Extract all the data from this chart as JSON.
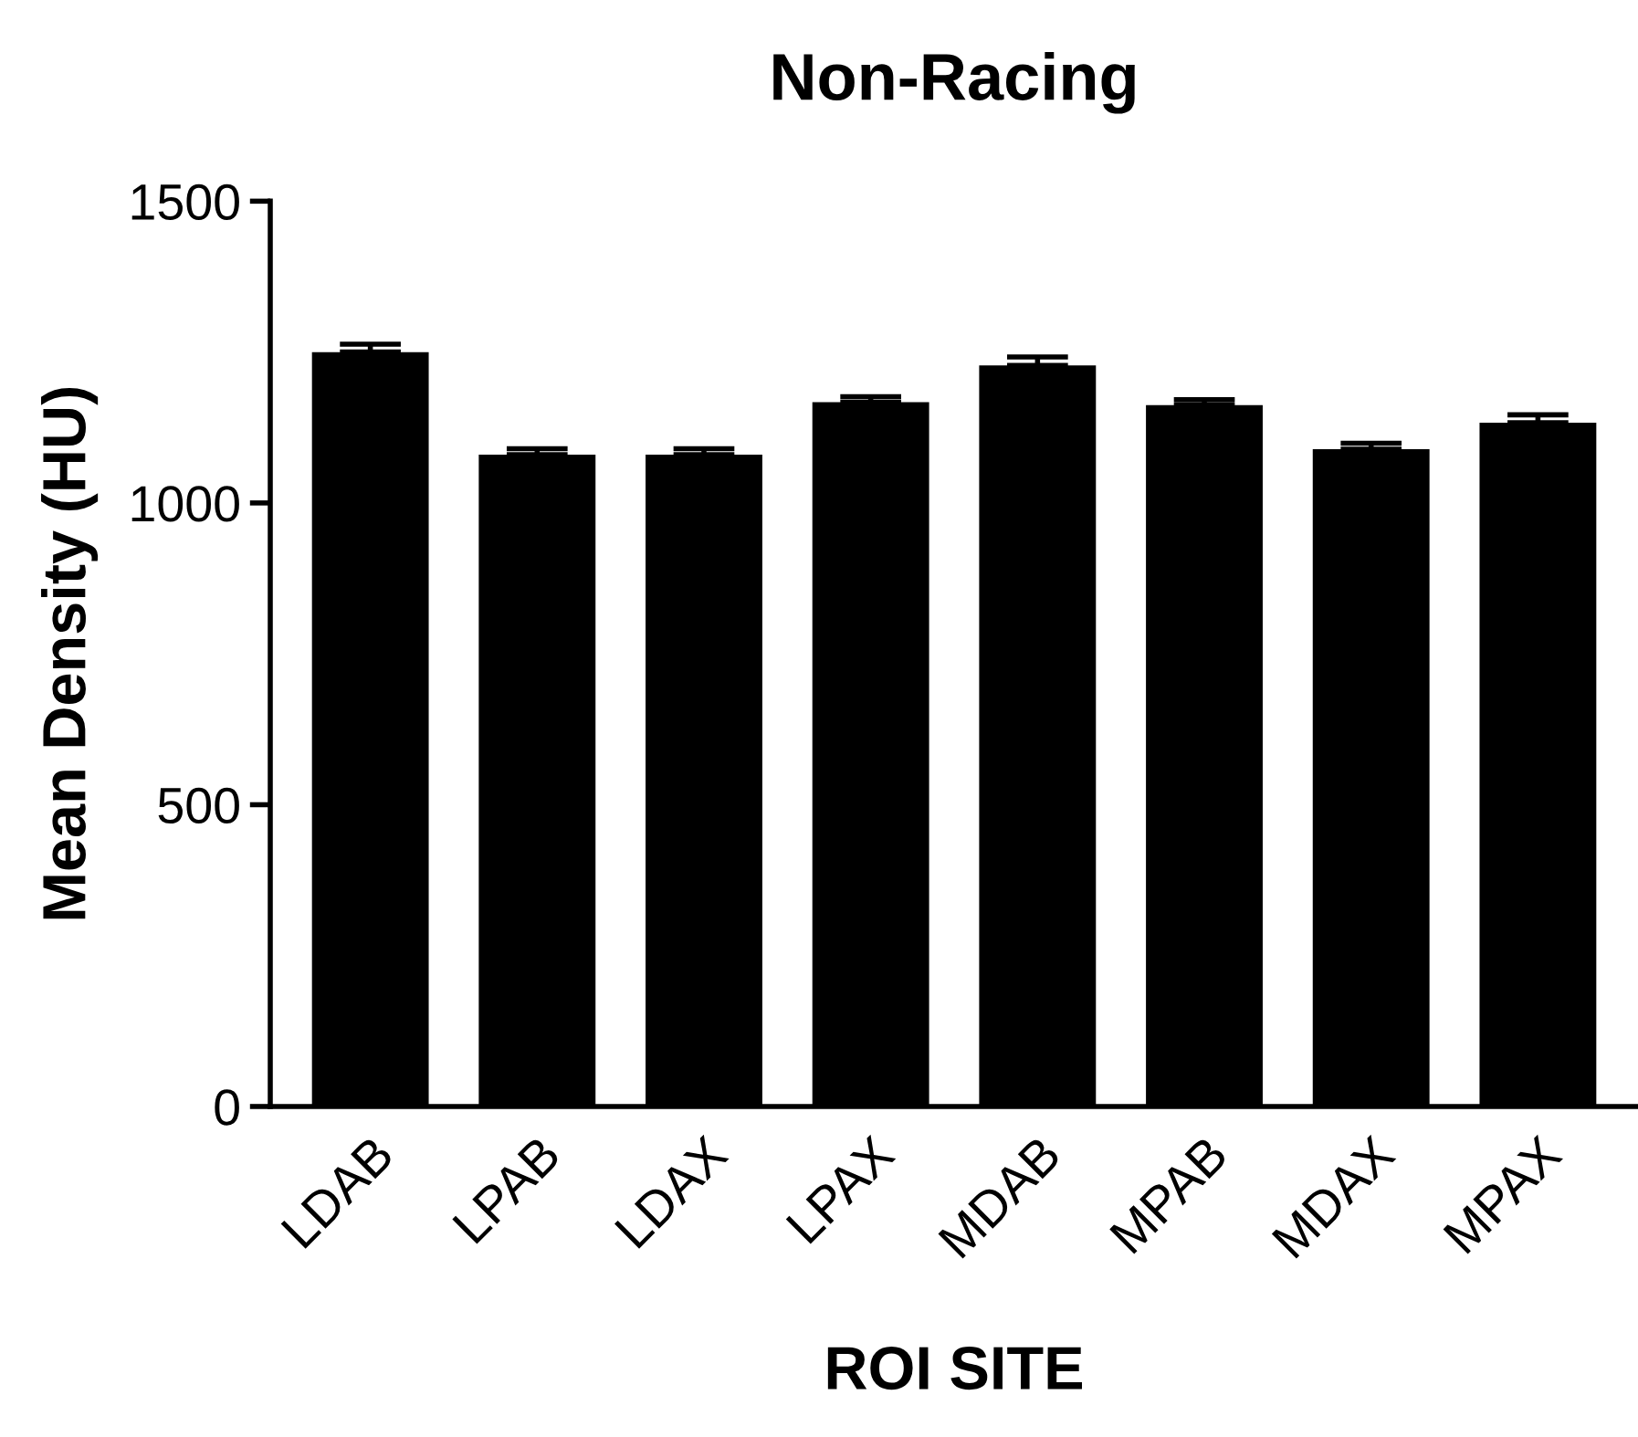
{
  "chart_data": {
    "type": "bar",
    "title": "Non-Racing",
    "xlabel": "ROI SITE",
    "ylabel": "Mean Density (HU)",
    "categories": [
      "LDAB",
      "LPAB",
      "LDAX",
      "LPAX",
      "MDAB",
      "MPAB",
      "MDAX",
      "MPAX"
    ],
    "values": [
      1250,
      1080,
      1080,
      1167,
      1228,
      1162,
      1089,
      1133
    ],
    "errors": [
      [
        1250,
        1263
      ],
      [
        1080,
        1090
      ],
      [
        1080,
        1090
      ],
      [
        1167,
        1176
      ],
      [
        1228,
        1242
      ],
      [
        1162,
        1171
      ],
      [
        1089,
        1099
      ],
      [
        1133,
        1146
      ]
    ],
    "color": "#000000",
    "ylim": [
      0,
      1500
    ],
    "yticks": [
      0,
      500,
      1000,
      1500
    ],
    "grid": false,
    "legend": false
  }
}
